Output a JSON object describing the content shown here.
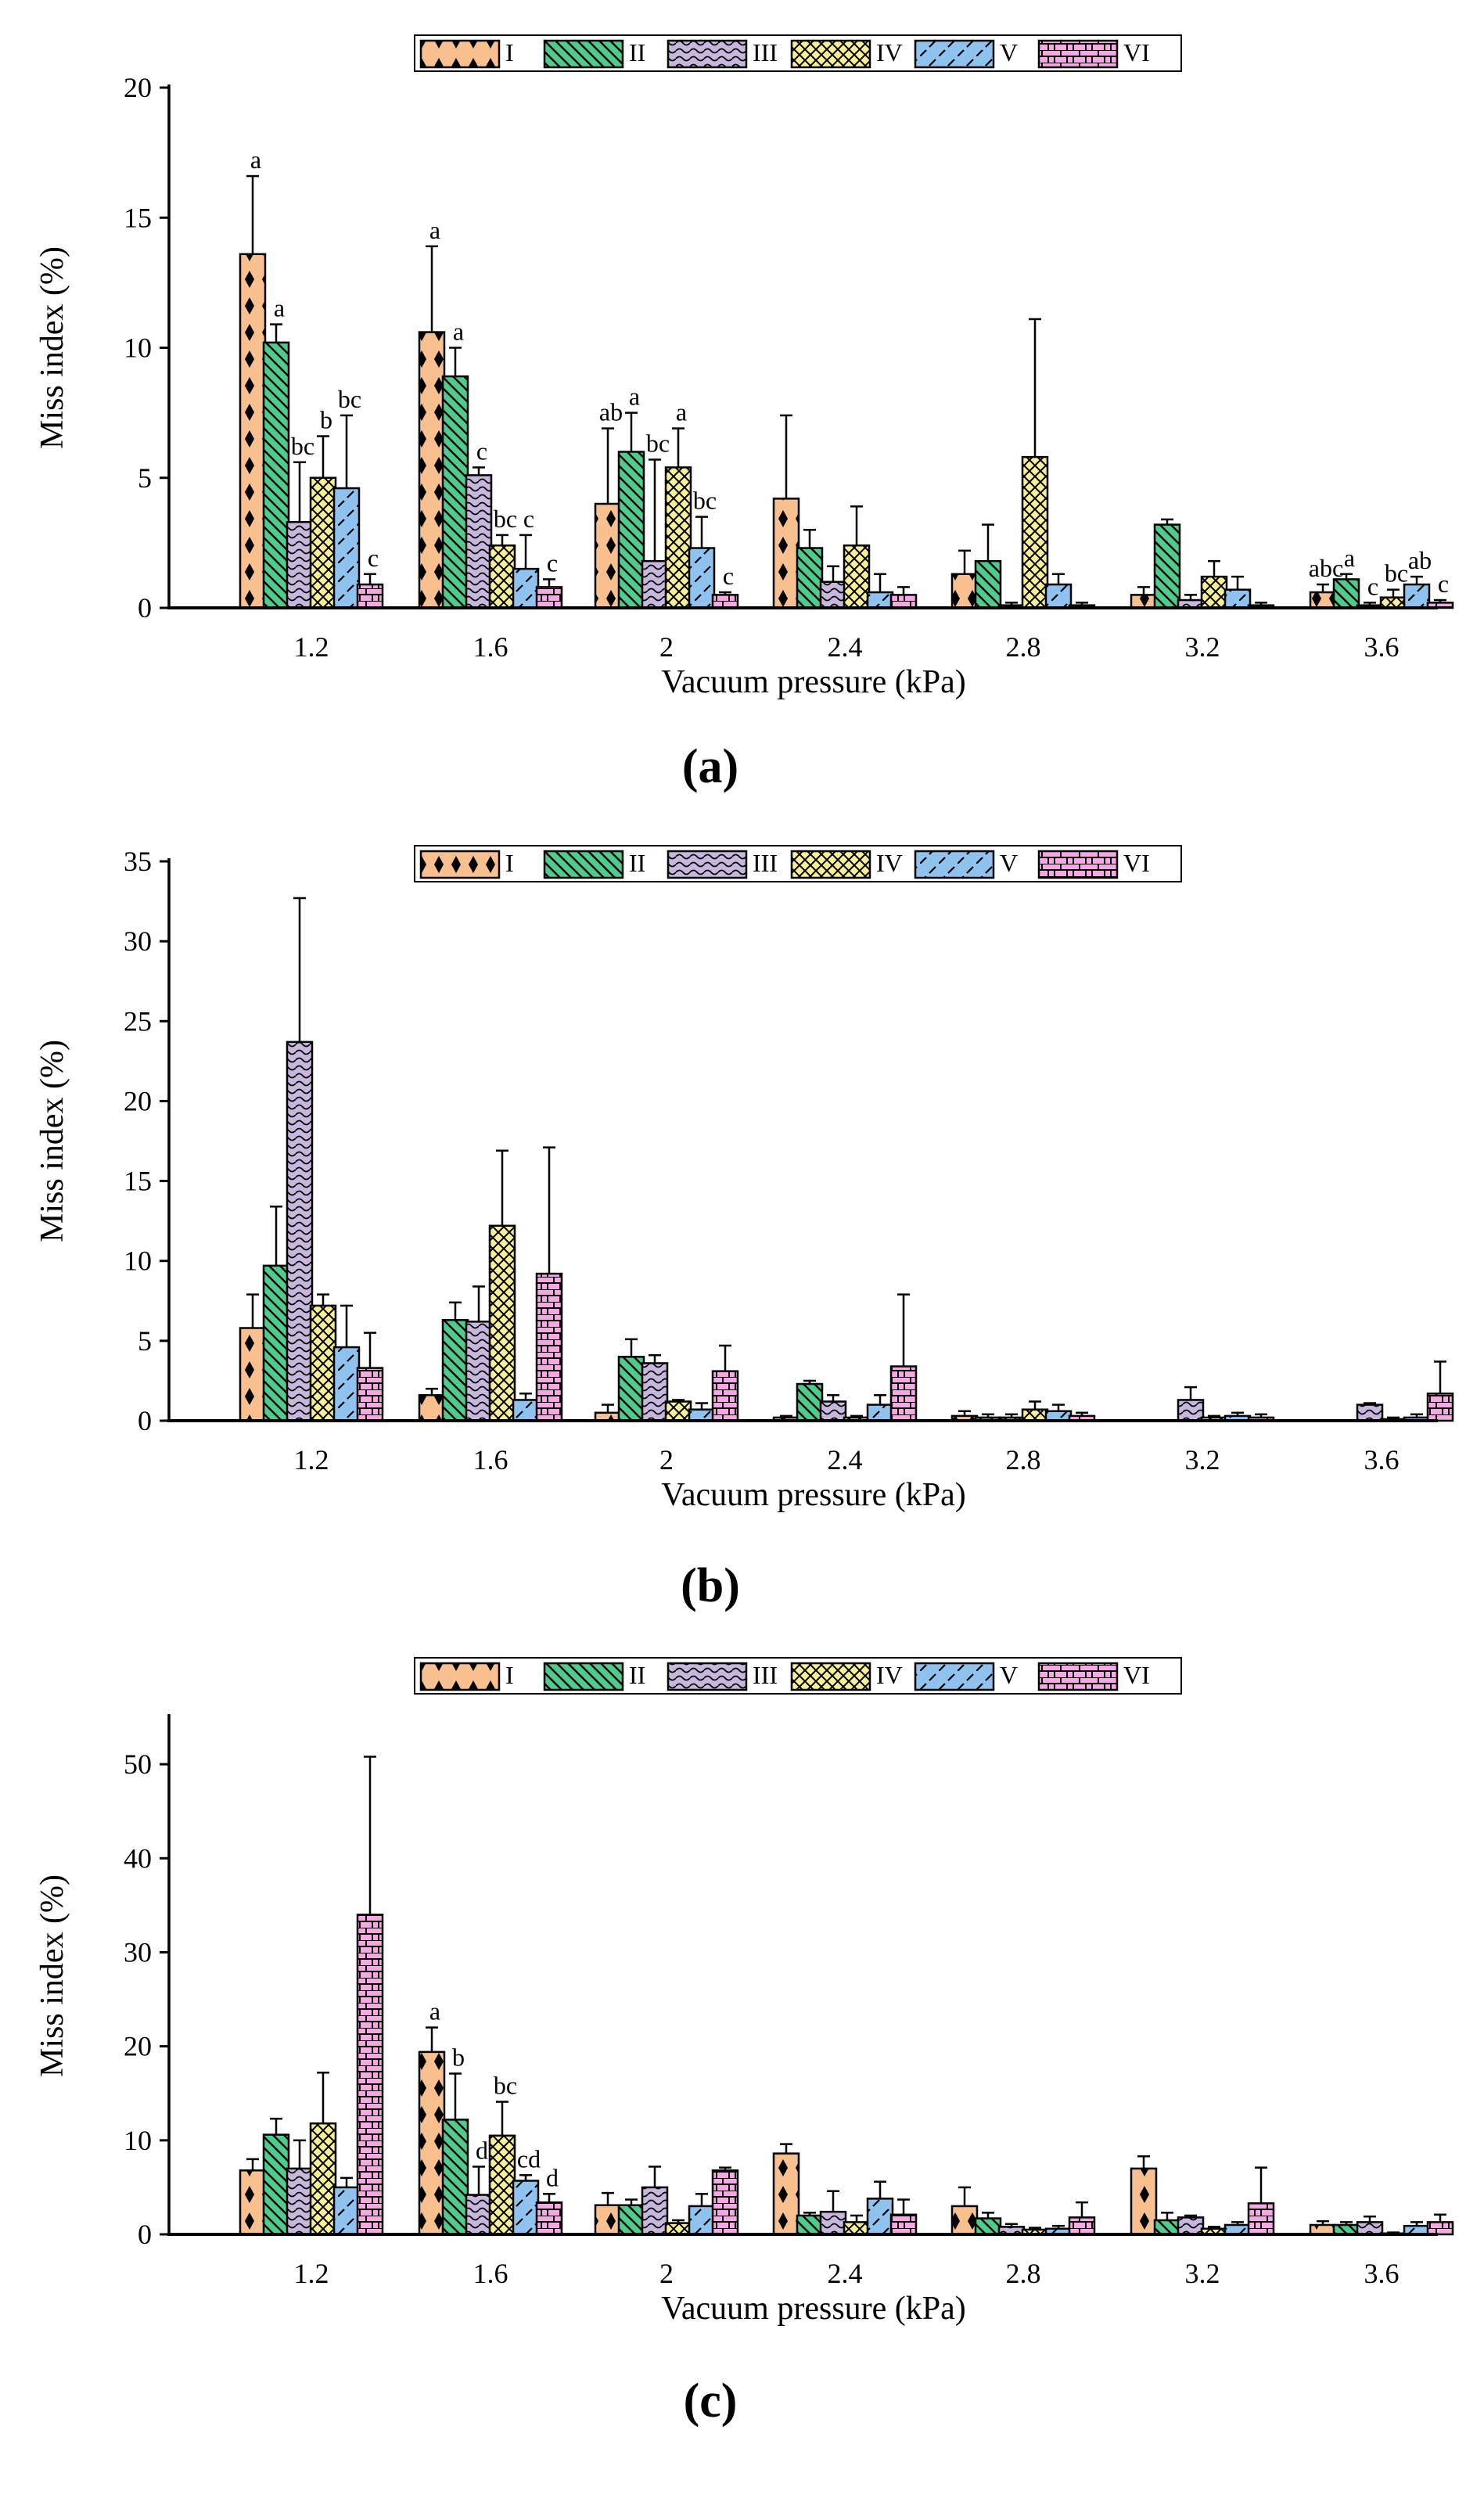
{
  "figure": {
    "colors": {
      "I": "#f8c08f",
      "II": "#4fcb8b",
      "III": "#c7b7dd",
      "IV": "#f6ef9a",
      "V": "#8fc2ee",
      "VI": "#f7a8e4"
    }
  },
  "chart_data": [
    {
      "type": "bar",
      "panel_label": "(a)",
      "xlabel": "Vacuum pressure (kPa)",
      "ylabel": "Miss index (%)",
      "categories": [
        "1.2",
        "1.6",
        "2",
        "2.4",
        "2.8",
        "3.2",
        "3.6"
      ],
      "ylim": [
        0,
        20
      ],
      "yticks": [
        "0",
        "5",
        "10",
        "15",
        "20"
      ],
      "legend": [
        "I",
        "II",
        "III",
        "IV",
        "V",
        "VI"
      ],
      "series": [
        {
          "name": "I",
          "values": [
            13.6,
            10.6,
            4.0,
            4.2,
            1.3,
            0.5,
            0.6
          ],
          "errors": [
            3.0,
            3.3,
            2.9,
            3.2,
            0.9,
            0.3,
            0.3
          ],
          "labels": [
            "a",
            "a",
            "ab",
            "",
            "",
            "",
            "abc"
          ]
        },
        {
          "name": "II",
          "values": [
            10.2,
            8.9,
            6.0,
            2.3,
            1.8,
            3.2,
            1.1
          ],
          "errors": [
            0.7,
            1.1,
            1.5,
            0.7,
            1.4,
            0.2,
            0.2
          ],
          "labels": [
            "a",
            "a",
            "a",
            "",
            "",
            "",
            "a"
          ]
        },
        {
          "name": "III",
          "values": [
            3.3,
            5.1,
            1.8,
            1.0,
            0.1,
            0.3,
            0.1
          ],
          "errors": [
            2.3,
            0.3,
            3.9,
            0.6,
            0.1,
            0.2,
            0.1
          ],
          "labels": [
            "bc",
            "c",
            "bc",
            "",
            "",
            "",
            "c"
          ]
        },
        {
          "name": "IV",
          "values": [
            5.0,
            2.4,
            5.4,
            2.4,
            5.8,
            1.2,
            0.4
          ],
          "errors": [
            1.6,
            0.4,
            1.5,
            1.5,
            5.3,
            0.6,
            0.3
          ],
          "labels": [
            "b",
            "bc",
            "a",
            "",
            "",
            "",
            "bc"
          ]
        },
        {
          "name": "V",
          "values": [
            4.6,
            1.5,
            2.3,
            0.6,
            0.9,
            0.7,
            0.9
          ],
          "errors": [
            2.8,
            1.3,
            1.2,
            0.7,
            0.4,
            0.5,
            0.3
          ],
          "labels": [
            "bc",
            "c",
            "bc",
            "",
            "",
            "",
            "ab"
          ]
        },
        {
          "name": "VI",
          "values": [
            0.9,
            0.8,
            0.5,
            0.5,
            0.1,
            0.1,
            0.2
          ],
          "errors": [
            0.4,
            0.3,
            0.1,
            0.3,
            0.1,
            0.1,
            0.1
          ],
          "labels": [
            "c",
            "c",
            "c",
            "",
            "",
            "",
            "c"
          ]
        }
      ]
    },
    {
      "type": "bar",
      "panel_label": "(b)",
      "xlabel": "Vacuum pressure (kPa)",
      "ylabel": "Miss index (%)",
      "categories": [
        "1.2",
        "1.6",
        "2",
        "2.4",
        "2.8",
        "3.2",
        "3.6"
      ],
      "ylim": [
        0,
        35
      ],
      "yticks": [
        "0",
        "5",
        "10",
        "15",
        "20",
        "25",
        "30",
        "35"
      ],
      "legend": [
        "I",
        "II",
        "III",
        "IV",
        "V",
        "VI"
      ],
      "series": [
        {
          "name": "I",
          "values": [
            5.8,
            1.6,
            0.5,
            0.2,
            0.3,
            0.0,
            0.0
          ],
          "errors": [
            2.1,
            0.4,
            0.5,
            0.1,
            0.3,
            0.0,
            0.0
          ]
        },
        {
          "name": "II",
          "values": [
            9.7,
            6.3,
            4.0,
            2.3,
            0.2,
            0.0,
            0.0
          ],
          "errors": [
            3.7,
            1.1,
            1.1,
            0.2,
            0.2,
            0.0,
            0.0
          ]
        },
        {
          "name": "III",
          "values": [
            23.7,
            6.2,
            3.6,
            1.2,
            0.2,
            1.3,
            1.0
          ],
          "errors": [
            9.0,
            2.2,
            0.5,
            0.4,
            0.2,
            0.8,
            0.1
          ]
        },
        {
          "name": "IV",
          "values": [
            7.2,
            12.2,
            1.2,
            0.2,
            0.7,
            0.2,
            0.1
          ],
          "errors": [
            0.7,
            4.7,
            0.1,
            0.1,
            0.5,
            0.1,
            0.1
          ]
        },
        {
          "name": "V",
          "values": [
            4.6,
            1.3,
            0.7,
            1.0,
            0.6,
            0.3,
            0.2
          ],
          "errors": [
            2.6,
            0.4,
            0.4,
            0.6,
            0.4,
            0.2,
            0.2
          ]
        },
        {
          "name": "VI",
          "values": [
            3.3,
            9.2,
            3.1,
            3.4,
            0.3,
            0.2,
            1.7
          ],
          "errors": [
            2.2,
            7.9,
            1.6,
            4.5,
            0.2,
            0.2,
            2.0
          ]
        }
      ]
    },
    {
      "type": "bar",
      "panel_label": "(c)",
      "xlabel": "Vacuum pressure (kPa)",
      "ylabel": "Miss index (%)",
      "categories": [
        "1.2",
        "1.6",
        "2",
        "2.4",
        "2.8",
        "3.2",
        "3.6"
      ],
      "ylim": [
        0,
        55
      ],
      "yticks": [
        "0",
        "10",
        "20",
        "30",
        "40",
        "50"
      ],
      "legend": [
        "I",
        "II",
        "III",
        "IV",
        "V",
        "VI"
      ],
      "series": [
        {
          "name": "I",
          "values": [
            6.8,
            19.4,
            3.1,
            8.6,
            3.0,
            7.0,
            1.0
          ],
          "errors": [
            1.2,
            2.6,
            1.3,
            1.0,
            2.0,
            1.3,
            0.4
          ],
          "labels": [
            "",
            "a",
            "",
            "",
            "",
            "",
            ""
          ]
        },
        {
          "name": "II",
          "values": [
            10.6,
            12.2,
            3.1,
            2.0,
            1.7,
            1.5,
            1.0
          ],
          "errors": [
            1.7,
            4.9,
            0.6,
            0.3,
            0.6,
            0.8,
            0.3
          ],
          "labels": [
            "",
            "b",
            "",
            "",
            "",
            "",
            ""
          ]
        },
        {
          "name": "III",
          "values": [
            7.0,
            4.2,
            5.0,
            2.4,
            0.8,
            1.8,
            1.3
          ],
          "errors": [
            3.0,
            3.0,
            2.2,
            2.2,
            0.3,
            0.2,
            0.6
          ],
          "labels": [
            "",
            "d",
            "",
            "",
            "",
            "",
            ""
          ]
        },
        {
          "name": "IV",
          "values": [
            11.8,
            10.5,
            1.2,
            1.3,
            0.5,
            0.6,
            0.1
          ],
          "errors": [
            5.4,
            3.6,
            0.3,
            0.7,
            0.2,
            0.2,
            0.1
          ],
          "labels": [
            "",
            "bc",
            "",
            "",
            "",
            "",
            ""
          ]
        },
        {
          "name": "V",
          "values": [
            5.0,
            5.7,
            3.0,
            3.8,
            0.6,
            1.0,
            0.9
          ],
          "errors": [
            1.0,
            0.6,
            1.3,
            1.8,
            0.3,
            0.3,
            0.4
          ],
          "labels": [
            "",
            "cd",
            "",
            "",
            "",
            "",
            ""
          ]
        },
        {
          "name": "VI",
          "values": [
            34.0,
            3.4,
            6.8,
            2.1,
            1.8,
            3.3,
            1.3
          ],
          "errors": [
            16.8,
            0.9,
            0.3,
            1.6,
            1.6,
            3.8,
            0.8
          ],
          "labels": [
            "",
            "d",
            "",
            "",
            "",
            "",
            ""
          ]
        }
      ]
    }
  ]
}
